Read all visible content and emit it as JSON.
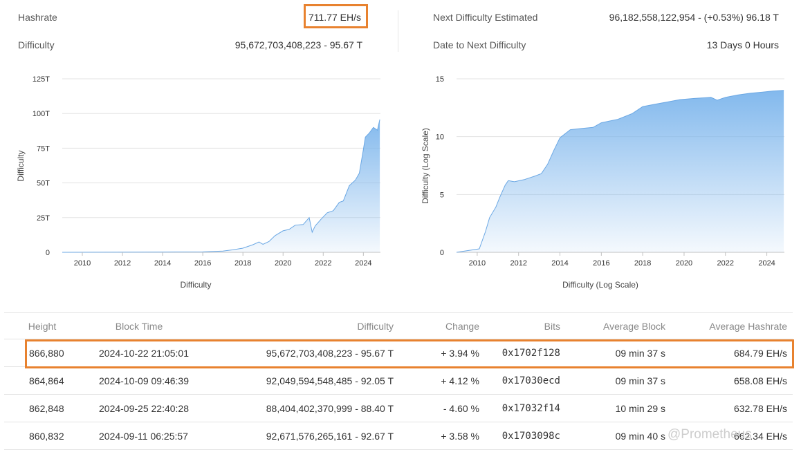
{
  "stats": {
    "hashrate_label": "Hashrate",
    "hashrate_value": "711.77 EH/s",
    "difficulty_label": "Difficulty",
    "difficulty_value": "95,672,703,408,223 - 95.67 T",
    "next_label": "Next Difficulty Estimated",
    "next_value": "96,182,558,122,954 - (+0.53%) 96.18 T",
    "date_label": "Date to Next Difficulty",
    "date_value": "13 Days 0 Hours"
  },
  "chart_data": [
    {
      "type": "area",
      "title": "",
      "xlabel": "Difficulty",
      "ylabel": "Difficulty",
      "x_ticks": [
        "2010",
        "2012",
        "2014",
        "2016",
        "2018",
        "2020",
        "2022",
        "2024"
      ],
      "y_ticks": [
        "0",
        "25T",
        "50T",
        "75T",
        "100T",
        "125T"
      ],
      "xlim": [
        2009.0,
        2024.85
      ],
      "ylim": [
        0,
        125
      ],
      "series": [
        {
          "name": "Difficulty (T)",
          "x": [
            2009.0,
            2014.0,
            2016.0,
            2017.0,
            2017.5,
            2018.0,
            2018.5,
            2018.8,
            2019.0,
            2019.3,
            2019.6,
            2020.0,
            2020.3,
            2020.6,
            2021.0,
            2021.3,
            2021.45,
            2021.6,
            2021.9,
            2022.2,
            2022.5,
            2022.8,
            2023.0,
            2023.3,
            2023.6,
            2023.8,
            2024.0,
            2024.1,
            2024.3,
            2024.5,
            2024.7,
            2024.82
          ],
          "values": [
            0,
            0.2,
            0.3,
            0.9,
            1.8,
            3.0,
            5.5,
            7.4,
            5.8,
            7.8,
            12.0,
            15.5,
            16.5,
            19.5,
            20.0,
            25.0,
            14.5,
            19.0,
            24.0,
            28.5,
            30.0,
            36.0,
            37.0,
            48.0,
            52.0,
            57.0,
            74.0,
            83.0,
            86.0,
            90.0,
            88.0,
            95.67
          ]
        }
      ]
    },
    {
      "type": "area",
      "title": "",
      "xlabel": "Difficulty (Log Scale)",
      "ylabel": "Difficulty (Log Scale)",
      "x_ticks": [
        "2010",
        "2012",
        "2014",
        "2016",
        "2018",
        "2020",
        "2022",
        "2024"
      ],
      "y_ticks": [
        "0",
        "5",
        "10",
        "15"
      ],
      "xlim": [
        2009.0,
        2024.85
      ],
      "ylim": [
        0,
        15
      ],
      "series": [
        {
          "name": "Difficulty (Log Scale)",
          "x": [
            2009.0,
            2010.1,
            2010.4,
            2010.6,
            2010.9,
            2011.1,
            2011.35,
            2011.5,
            2011.8,
            2012.3,
            2012.8,
            2013.1,
            2013.4,
            2013.7,
            2014.0,
            2014.5,
            2015.0,
            2015.6,
            2016.0,
            2016.8,
            2017.5,
            2018.0,
            2018.6,
            2019.2,
            2019.8,
            2020.5,
            2021.3,
            2021.6,
            2022.0,
            2022.6,
            2023.2,
            2023.8,
            2024.3,
            2024.82
          ],
          "values": [
            0,
            0.3,
            1.8,
            3.0,
            3.9,
            4.8,
            5.8,
            6.2,
            6.1,
            6.3,
            6.6,
            6.8,
            7.6,
            8.8,
            9.9,
            10.6,
            10.7,
            10.8,
            11.2,
            11.5,
            12.0,
            12.6,
            12.8,
            13.0,
            13.2,
            13.3,
            13.4,
            13.15,
            13.4,
            13.6,
            13.75,
            13.85,
            13.95,
            14.0
          ]
        }
      ]
    }
  ],
  "table": {
    "headers": [
      "Height",
      "Block Time",
      "Difficulty",
      "Change",
      "Bits",
      "Average Block",
      "Average Hashrate"
    ],
    "rows": [
      {
        "height": "866,880",
        "time": "2024-10-22 21:05:01",
        "difficulty": "95,672,703,408,223 - 95.67 T",
        "change": "+ 3.94 %",
        "change_dir": "up",
        "bits": "0x1702f128",
        "avg_block": "09 min 37 s",
        "avg_hash": "684.79 EH/s"
      },
      {
        "height": "864,864",
        "time": "2024-10-09 09:46:39",
        "difficulty": "92,049,594,548,485 - 92.05 T",
        "change": "+ 4.12 %",
        "change_dir": "up",
        "bits": "0x17030ecd",
        "avg_block": "09 min 37 s",
        "avg_hash": "658.08 EH/s"
      },
      {
        "height": "862,848",
        "time": "2024-09-25 22:40:28",
        "difficulty": "88,404,402,370,999 - 88.40 T",
        "change": "- 4.60 %",
        "change_dir": "down",
        "bits": "0x17032f14",
        "avg_block": "10 min 29 s",
        "avg_hash": "632.78 EH/s"
      },
      {
        "height": "860,832",
        "time": "2024-09-11 06:25:57",
        "difficulty": "92,671,576,265,161 - 92.67 T",
        "change": "+ 3.58 %",
        "change_dir": "up",
        "bits": "0x1703098c",
        "avg_block": "09 min 40 s",
        "avg_hash": "662.34 EH/s"
      }
    ]
  },
  "watermark": "@Prometheus",
  "colors": {
    "accent": "#e8822f",
    "link": "#2f6e9e",
    "up": "#2a8a2a",
    "down": "#d33333",
    "area": "#7cb5ec"
  }
}
